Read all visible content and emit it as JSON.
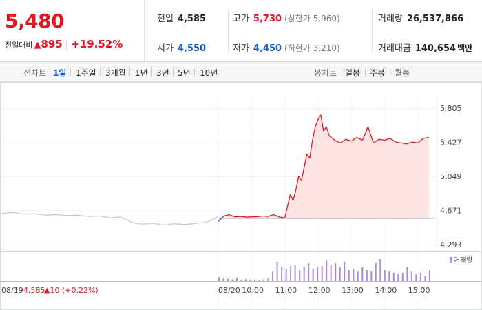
{
  "quote": {
    "price": "5,480",
    "change_label": "전일대비",
    "change_arrow": "▲",
    "change_amount": "895",
    "change_rate": "+19.52%",
    "items": [
      {
        "key": "전일",
        "value": "4,585",
        "tone": "neutral",
        "sub": ""
      },
      {
        "key": "시가",
        "value": "4,550",
        "tone": "down",
        "sub": ""
      },
      {
        "key": "고가",
        "value": "5,730",
        "tone": "up",
        "sub": "(상한가 5,960)"
      },
      {
        "key": "저가",
        "value": "4,450",
        "tone": "down",
        "sub": "(하한가 3,210)"
      },
      {
        "key": "거래량",
        "value": "26,537,866",
        "tone": "neutral",
        "sub": ""
      },
      {
        "key": "거래대금",
        "value": "140,654",
        "tone": "neutral",
        "sub": "백만"
      }
    ]
  },
  "toolbar": {
    "line_label": "선차트",
    "line_periods": [
      "1일",
      "1주일",
      "3개월",
      "1년",
      "3년",
      "5년",
      "10년"
    ],
    "active_period": "1일",
    "candle_label": "봉차트",
    "candle_periods": [
      "일봉",
      "주봉",
      "월봉"
    ]
  },
  "colors": {
    "up": "#e2151e",
    "down": "#1a5ec9",
    "prev_day_line": "#c4c4c4",
    "area_fill": "#fde4e4",
    "volume": "#a58fd6",
    "baseline": "#555555"
  },
  "chart_data": {
    "type": "line",
    "y_ticks": [
      "5,805",
      "5,427",
      "5,049",
      "4,671",
      "4,293"
    ],
    "ylim": [
      4293,
      5805
    ],
    "baseline_price": 4585,
    "x_labels": [
      "08/19",
      "08/20",
      "10:00",
      "11:00",
      "12:00",
      "13:00",
      "14:00",
      "15:00"
    ],
    "prev_day_label": "08/19",
    "prev_day_close": "4,585",
    "prev_day_change": "▲10 (+0.22%)",
    "volume_legend": "거래량",
    "prev_day_series": {
      "time": [
        0,
        0.05,
        0.1,
        0.15,
        0.2,
        0.25,
        0.3,
        0.35,
        0.4,
        0.45,
        0.5,
        0.55,
        0.6,
        0.65,
        0.7,
        0.75,
        0.8,
        0.85,
        0.9,
        0.95,
        1.0
      ],
      "price": [
        4640,
        4650,
        4630,
        4635,
        4620,
        4625,
        4615,
        4620,
        4605,
        4610,
        4590,
        4600,
        4540,
        4520,
        4530,
        4510,
        4525,
        4515,
        4530,
        4540,
        4600
      ]
    },
    "today_series": {
      "time": [
        "09:00",
        "09:10",
        "09:20",
        "09:30",
        "09:40",
        "09:50",
        "10:00",
        "10:10",
        "10:20",
        "10:30",
        "10:40",
        "10:50",
        "11:00",
        "11:05",
        "11:10",
        "11:15",
        "11:20",
        "11:25",
        "11:30",
        "11:35",
        "11:40",
        "11:45",
        "11:50",
        "11:55",
        "12:00",
        "12:05",
        "12:10",
        "12:15",
        "12:20",
        "12:30",
        "12:40",
        "12:50",
        "13:00",
        "13:10",
        "13:20",
        "13:25",
        "13:30",
        "13:40",
        "13:50",
        "14:00",
        "14:10",
        "14:20",
        "14:30",
        "14:40",
        "14:50",
        "15:00",
        "15:10",
        "15:20"
      ],
      "price": [
        4550,
        4610,
        4625,
        4600,
        4605,
        4598,
        4600,
        4602,
        4610,
        4605,
        4625,
        4600,
        4588,
        4720,
        4850,
        4780,
        4900,
        5050,
        5000,
        5150,
        5300,
        5250,
        5450,
        5600,
        5680,
        5730,
        5550,
        5600,
        5500,
        5450,
        5420,
        5460,
        5440,
        5480,
        5450,
        5520,
        5600,
        5420,
        5460,
        5450,
        5470,
        5430,
        5420,
        5410,
        5430,
        5420,
        5470,
        5480
      ]
    },
    "today_volume_relative": [
      0.15,
      0.1,
      0.08,
      0.06,
      0.12,
      0.05,
      0.07,
      0.06,
      0.05,
      0.04,
      0.06,
      0.1,
      0.35,
      0.7,
      0.5,
      0.45,
      0.55,
      0.6,
      0.4,
      0.5,
      0.65,
      0.45,
      0.5,
      0.55,
      0.75,
      0.6,
      0.65,
      0.5,
      0.7,
      0.4,
      0.45,
      0.35,
      0.5,
      0.4,
      0.35,
      0.65,
      0.8,
      0.4,
      0.35,
      0.3,
      0.25,
      0.3,
      0.5,
      0.35,
      0.25,
      0.3,
      0.2,
      0.4
    ]
  }
}
